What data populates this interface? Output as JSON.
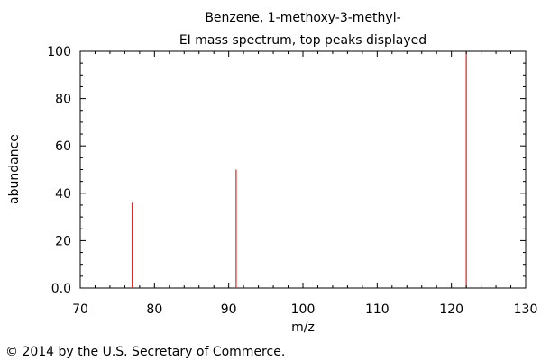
{
  "chart_data": {
    "type": "bar",
    "title": "Benzene, 1-methoxy-3-methyl-",
    "subtitle": "EI mass spectrum, top peaks displayed",
    "xlabel": "m/z",
    "ylabel": "abundance",
    "xlim": [
      70,
      130
    ],
    "ylim": [
      0,
      100
    ],
    "x_ticks": [
      "70",
      "80",
      "90",
      "100",
      "110",
      "120",
      "130"
    ],
    "y_ticks": [
      "0.0",
      "20",
      "40",
      "60",
      "80",
      "100"
    ],
    "x": [
      77,
      91,
      122
    ],
    "values": [
      36,
      50,
      100
    ],
    "grid": false,
    "legend": "none",
    "peak_color": "#e02020",
    "axis_color": "#000000"
  },
  "footer": {
    "copyright": "© 2014 by the U.S. Secretary of Commerce."
  }
}
